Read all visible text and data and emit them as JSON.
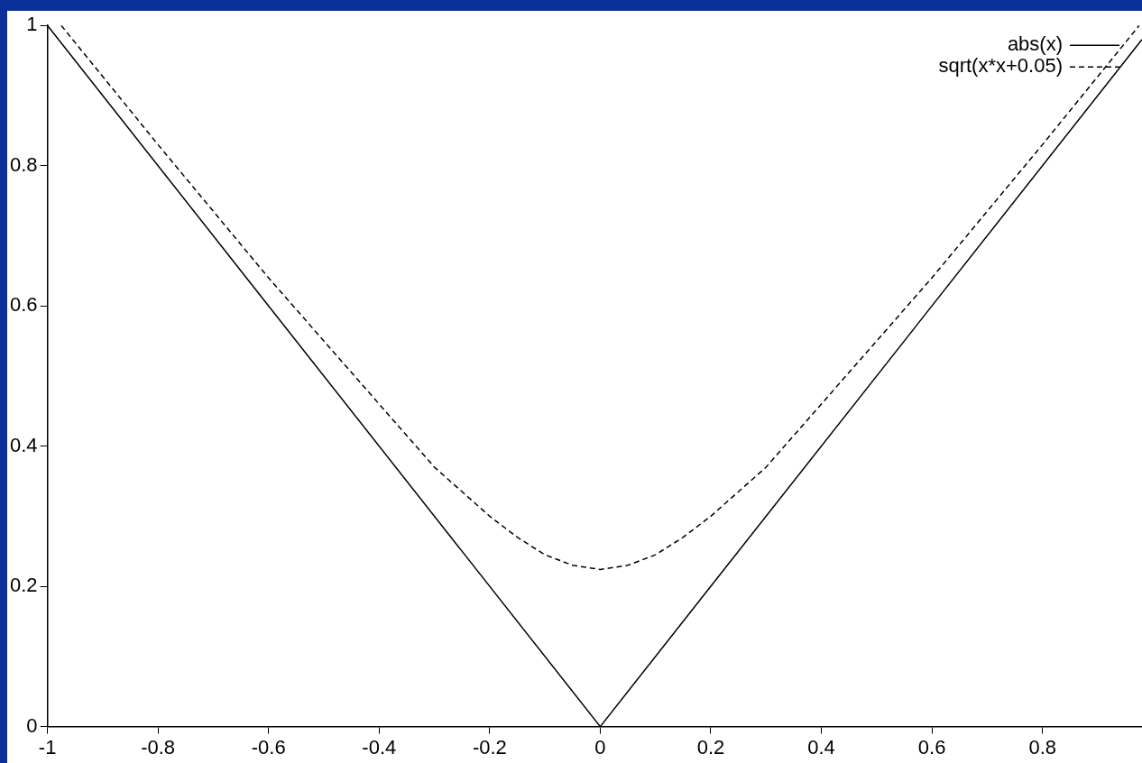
{
  "chart_data": {
    "type": "line",
    "x": [
      -1,
      0,
      0.98
    ],
    "xlim": [
      -1,
      0.98
    ],
    "xticks": [
      -1,
      -0.8,
      -0.6,
      -0.4,
      -0.2,
      0,
      0.2,
      0.4,
      0.6,
      0.8
    ],
    "ylim": [
      0,
      1
    ],
    "yticks": [
      0,
      0.2,
      0.4,
      0.6,
      0.8,
      1
    ],
    "grid": false,
    "legend": "top right",
    "marker": "none",
    "series": [
      {
        "name": "abs(x)",
        "color": "#000000",
        "line_style": "solid",
        "values": [
          1,
          0,
          0.98
        ]
      },
      {
        "name": "sqrt(x*x+0.05)",
        "color": "#000000",
        "line_style": "dashed",
        "x": [
          -0.975,
          -0.8,
          -0.6,
          -0.4,
          -0.3,
          -0.2,
          -0.15,
          -0.1,
          -0.05,
          0,
          0.05,
          0.1,
          0.15,
          0.2,
          0.3,
          0.4,
          0.6,
          0.8,
          0.975
        ],
        "values": [
          1,
          0.83,
          0.64,
          0.46,
          0.37,
          0.3,
          0.27,
          0.245,
          0.23,
          0.224,
          0.23,
          0.245,
          0.27,
          0.3,
          0.37,
          0.46,
          0.64,
          0.83,
          1
        ]
      }
    ]
  }
}
